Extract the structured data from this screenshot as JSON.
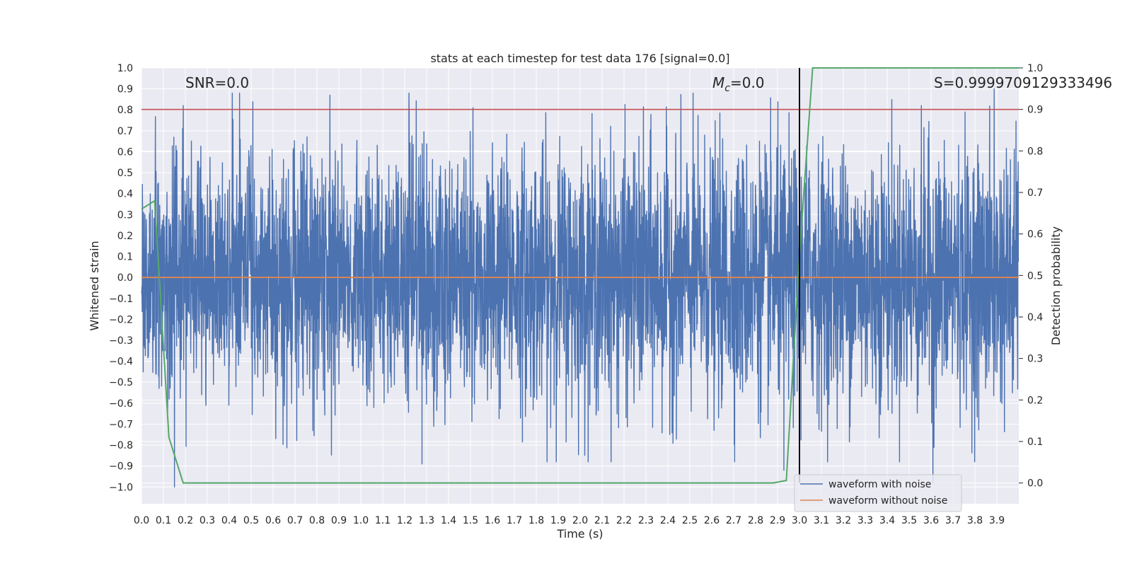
{
  "chart_data": {
    "type": "line",
    "title": "stats at each timestep for test data 176 [signal=0.0]",
    "xlabel": "Time (s)",
    "ylabel": "Whitened strain",
    "ylabel_right": "Detection probability",
    "xlim": [
      0.0,
      4.0
    ],
    "ylim": [
      -1.08,
      1.0
    ],
    "ylim_right": [
      -0.05,
      1.0
    ],
    "x_ticks": [
      "0.0",
      "0.1",
      "0.2",
      "0.3",
      "0.4",
      "0.5",
      "0.6",
      "0.7",
      "0.8",
      "0.9",
      "1.0",
      "1.1",
      "1.2",
      "1.3",
      "1.4",
      "1.5",
      "1.6",
      "1.7",
      "1.8",
      "1.9",
      "2.0",
      "2.1",
      "2.2",
      "2.3",
      "2.4",
      "2.5",
      "2.6",
      "2.7",
      "2.8",
      "2.9",
      "3.0",
      "3.1",
      "3.2",
      "3.3",
      "3.4",
      "3.5",
      "3.6",
      "3.7",
      "3.8",
      "3.9"
    ],
    "y_ticks": [
      "1.0",
      "0.9",
      "0.8",
      "0.7",
      "0.6",
      "0.5",
      "0.4",
      "0.3",
      "0.2",
      "0.1",
      "0.0",
      "-0.1",
      "-0.2",
      "-0.3",
      "-0.4",
      "-0.5",
      "-0.6",
      "-0.7",
      "-0.8",
      "-0.9",
      "-1.0"
    ],
    "y_ticks_right": [
      "1.0",
      "0.9",
      "0.8",
      "0.7",
      "0.6",
      "0.5",
      "0.4",
      "0.3",
      "0.2",
      "0.1",
      "0.0"
    ],
    "annotations": {
      "snr": "SNR=0.0",
      "mc_symbol": "M",
      "mc_sub": "c",
      "mc_value": "=0.0",
      "s": "S=0.9999709129333496"
    },
    "threshold": {
      "value_right_axis": 0.9,
      "color": "#c44e52"
    },
    "trigger_time": 3.0,
    "series": [
      {
        "name": "waveform with noise",
        "color": "#4c72b0",
        "axis": "left",
        "description": "whitened noise, approx. Gaussian with sigma 0.3, max |amplitude| about 1.0",
        "n_points": 4096,
        "sigma": 0.3,
        "peaks": [
          [
            0.19,
            0.82
          ],
          [
            0.15,
            -1.0
          ],
          [
            1.22,
            0.88
          ],
          [
            1.28,
            -0.89
          ],
          [
            3.61,
            -0.98
          ],
          [
            3.89,
            0.9
          ],
          [
            0.86,
            0.87
          ],
          [
            2.93,
            -0.92
          ]
        ]
      },
      {
        "name": "waveform without noise",
        "color": "#dd8452",
        "axis": "left",
        "x": [
          0.0,
          4.0
        ],
        "values": [
          0.0,
          0.0
        ]
      },
      {
        "name": "detection probability",
        "color": "#55a868",
        "axis": "right",
        "x": [
          0.0,
          0.06,
          0.125,
          0.19,
          0.25,
          2.88,
          2.94,
          3.0,
          3.06,
          3.12,
          4.0
        ],
        "values": [
          0.66,
          0.68,
          0.11,
          0.0,
          0.0,
          0.0,
          0.006,
          0.55,
          1.0,
          1.0,
          1.0
        ]
      }
    ],
    "legend": {
      "position": "lower-right",
      "entries": [
        "waveform with noise",
        "waveform without noise"
      ]
    },
    "colors": {
      "background": "#eaeaf2",
      "grid": "#ffffff",
      "text": "#262626",
      "vline": "#000000"
    }
  }
}
